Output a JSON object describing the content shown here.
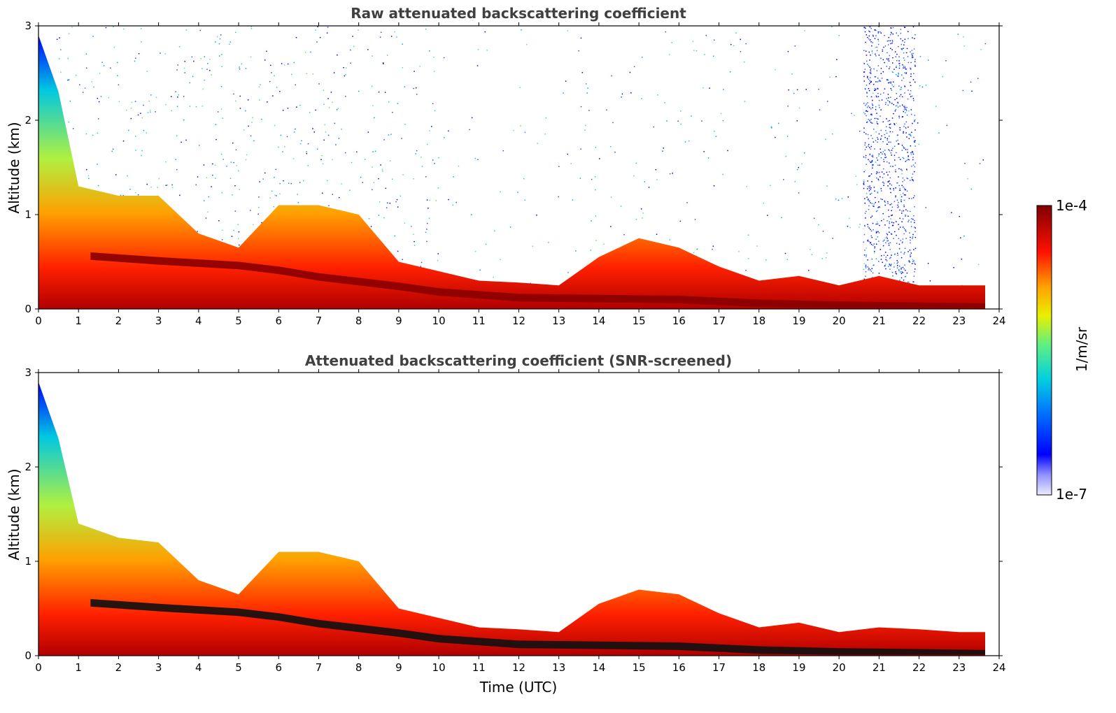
{
  "chart_data": [
    {
      "type": "heatmap",
      "title": "Raw attenuated backscattering coefficient",
      "xlabel": "",
      "ylabel": "Altitude (km)",
      "xlim": [
        0,
        24
      ],
      "ylim": [
        0,
        3
      ],
      "x_ticks": [
        "0",
        "1",
        "2",
        "3",
        "4",
        "5",
        "6",
        "7",
        "8",
        "9",
        "10",
        "11",
        "12",
        "13",
        "14",
        "15",
        "16",
        "17",
        "18",
        "19",
        "20",
        "21",
        "22",
        "23",
        "24"
      ],
      "y_ticks": [
        "0",
        "1",
        "2",
        "3"
      ],
      "layer_top_km": [
        [
          0,
          2.9
        ],
        [
          0.5,
          2.3
        ],
        [
          1,
          1.3
        ],
        [
          2,
          1.2
        ],
        [
          3,
          1.2
        ],
        [
          4,
          0.8
        ],
        [
          5,
          0.65
        ],
        [
          6,
          1.1
        ],
        [
          7,
          1.1
        ],
        [
          8,
          1.0
        ],
        [
          9,
          0.5
        ],
        [
          10,
          0.4
        ],
        [
          11,
          0.3
        ],
        [
          12,
          0.28
        ],
        [
          13,
          0.25
        ],
        [
          14,
          0.55
        ],
        [
          15,
          0.75
        ],
        [
          16,
          0.65
        ],
        [
          17,
          0.45
        ],
        [
          18,
          0.3
        ],
        [
          19,
          0.35
        ],
        [
          20,
          0.25
        ],
        [
          21,
          0.35
        ],
        [
          22,
          0.25
        ],
        [
          23,
          0.25
        ],
        [
          23.65,
          0.25
        ]
      ],
      "noise_present": true,
      "noise_column_x": [
        20.6,
        21.9
      ]
    },
    {
      "type": "heatmap",
      "title": "Attenuated backscattering coefficient (SNR-screened)",
      "xlabel": "Time (UTC)",
      "ylabel": "Altitude (km)",
      "xlim": [
        0,
        24
      ],
      "ylim": [
        0,
        3
      ],
      "x_ticks": [
        "0",
        "1",
        "2",
        "3",
        "4",
        "5",
        "6",
        "7",
        "8",
        "9",
        "10",
        "11",
        "12",
        "13",
        "14",
        "15",
        "16",
        "17",
        "18",
        "19",
        "20",
        "21",
        "22",
        "23",
        "24"
      ],
      "y_ticks": [
        "0",
        "1",
        "2",
        "3"
      ],
      "layer_top_km": [
        [
          0,
          2.9
        ],
        [
          0.5,
          2.3
        ],
        [
          1,
          1.4
        ],
        [
          2,
          1.25
        ],
        [
          3,
          1.2
        ],
        [
          4,
          0.8
        ],
        [
          5,
          0.65
        ],
        [
          6,
          1.1
        ],
        [
          7,
          1.1
        ],
        [
          8,
          1.0
        ],
        [
          9,
          0.5
        ],
        [
          10,
          0.4
        ],
        [
          11,
          0.3
        ],
        [
          12,
          0.28
        ],
        [
          13,
          0.25
        ],
        [
          14,
          0.55
        ],
        [
          15,
          0.7
        ],
        [
          16,
          0.65
        ],
        [
          17,
          0.45
        ],
        [
          18,
          0.3
        ],
        [
          19,
          0.35
        ],
        [
          20,
          0.25
        ],
        [
          21,
          0.3
        ],
        [
          22,
          0.28
        ],
        [
          23,
          0.25
        ],
        [
          23.65,
          0.25
        ]
      ],
      "noise_present": false
    }
  ],
  "colorbar": {
    "label": "1/m/sr",
    "max_label": "1e-4",
    "min_label": "1e-7",
    "colors": [
      "#e6e6fa",
      "#8080ff",
      "#0000ff",
      "#0080ff",
      "#00d0d0",
      "#80ff80",
      "#ffff00",
      "#ff8000",
      "#ff0000",
      "#800000"
    ]
  }
}
